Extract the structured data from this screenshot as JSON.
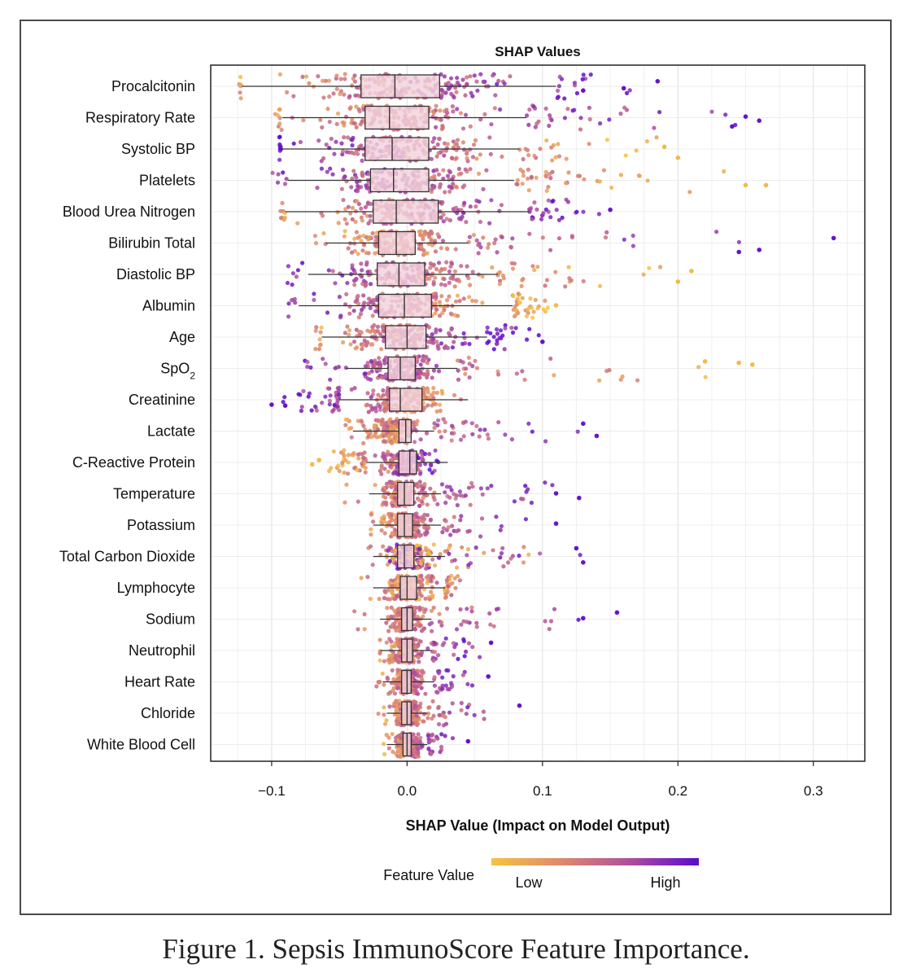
{
  "chart_data": {
    "type": "box-swarm",
    "title": "SHAP Values",
    "xlabel": "SHAP Value (Impact on Model Output)",
    "xlim": [
      -0.145,
      0.338
    ],
    "xticks": [
      {
        "value": -0.1,
        "label": "−0.1"
      },
      {
        "value": 0.0,
        "label": "0.0"
      },
      {
        "value": 0.1,
        "label": "0.1"
      },
      {
        "value": 0.2,
        "label": "0.2"
      },
      {
        "value": 0.3,
        "label": "0.3"
      }
    ],
    "grid": true,
    "legend": {
      "title": "Feature Value",
      "low": "Low",
      "high": "High",
      "colors": [
        "#f5c342",
        "#e08a6b",
        "#b0509c",
        "#5a0bd1"
      ],
      "position": "bottom-center"
    },
    "features": [
      {
        "name": "Procalcitonin",
        "base": "Procalcitonin",
        "q1": -0.034,
        "median": -0.009,
        "q3": 0.024,
        "wmin": -0.122,
        "wmax": 0.11,
        "dmin": -0.125,
        "dmax": 0.185,
        "pattern": "high-right",
        "outliers": [
          0.185,
          0.16,
          0.13
        ]
      },
      {
        "name": "Respiratory Rate",
        "base": "Respiratory Rate",
        "q1": -0.031,
        "median": -0.013,
        "q3": 0.016,
        "wmin": -0.092,
        "wmax": 0.088,
        "dmin": -0.1,
        "dmax": 0.265,
        "pattern": "high-right",
        "outliers": [
          0.26,
          0.25,
          0.24
        ]
      },
      {
        "name": "Systolic BP",
        "base": "Systolic BP",
        "q1": -0.031,
        "median": -0.011,
        "q3": 0.016,
        "wmin": -0.093,
        "wmax": 0.083,
        "dmin": -0.095,
        "dmax": 0.21,
        "pattern": "low-right",
        "outliers": [
          0.2,
          0.19
        ]
      },
      {
        "name": "Platelets",
        "base": "Platelets",
        "q1": -0.027,
        "median": -0.01,
        "q3": 0.016,
        "wmin": -0.088,
        "wmax": 0.079,
        "dmin": -0.105,
        "dmax": 0.265,
        "pattern": "low-right",
        "outliers": [
          0.265,
          0.25
        ]
      },
      {
        "name": "Blood Urea Nitrogen",
        "base": "Blood Urea Nitrogen",
        "q1": -0.025,
        "median": -0.008,
        "q3": 0.023,
        "wmin": -0.09,
        "wmax": 0.09,
        "dmin": -0.095,
        "dmax": 0.155,
        "pattern": "high-right",
        "outliers": [
          0.15
        ]
      },
      {
        "name": "Bilirubin Total",
        "base": "Bilirubin Total",
        "q1": -0.021,
        "median": -0.008,
        "q3": 0.006,
        "wmin": -0.06,
        "wmax": 0.045,
        "dmin": -0.075,
        "dmax": 0.315,
        "pattern": "high-right",
        "outliers": [
          0.315,
          0.26,
          0.245
        ]
      },
      {
        "name": "Diastolic BP",
        "base": "Diastolic BP",
        "q1": -0.022,
        "median": -0.006,
        "q3": 0.013,
        "wmin": -0.073,
        "wmax": 0.067,
        "dmin": -0.095,
        "dmax": 0.21,
        "pattern": "low-right",
        "outliers": [
          0.2,
          0.21
        ]
      },
      {
        "name": "Albumin",
        "base": "Albumin",
        "q1": -0.021,
        "median": -0.002,
        "q3": 0.018,
        "wmin": -0.08,
        "wmax": 0.078,
        "dmin": -0.095,
        "dmax": 0.12,
        "pattern": "low-right",
        "outliers": [
          0.11
        ]
      },
      {
        "name": "Age",
        "base": "Age",
        "q1": -0.016,
        "median": 0.0,
        "q3": 0.014,
        "wmin": -0.063,
        "wmax": 0.059,
        "dmin": -0.07,
        "dmax": 0.1,
        "pattern": "high-right",
        "outliers": [
          0.1
        ]
      },
      {
        "name": "SpO2",
        "base": "SpO",
        "sub": "2",
        "q1": -0.014,
        "median": -0.005,
        "q3": 0.006,
        "wmin": -0.045,
        "wmax": 0.037,
        "dmin": -0.09,
        "dmax": 0.255,
        "pattern": "low-right",
        "outliers": [
          0.255,
          0.245,
          0.22
        ]
      },
      {
        "name": "Creatinine",
        "base": "Creatinine",
        "q1": -0.013,
        "median": -0.005,
        "q3": 0.011,
        "wmin": -0.05,
        "wmax": 0.045,
        "dmin": -0.1,
        "dmax": 0.065,
        "pattern": "high-left",
        "outliers": [
          -0.1,
          -0.09
        ]
      },
      {
        "name": "Lactate",
        "base": "Lactate",
        "q1": -0.006,
        "median": -0.001,
        "q3": 0.003,
        "wmin": -0.04,
        "wmax": 0.02,
        "dmin": -0.05,
        "dmax": 0.14,
        "pattern": "high-right",
        "outliers": [
          0.14,
          0.13
        ]
      },
      {
        "name": "C-Reactive Protein",
        "base": "C-Reactive Protein",
        "q1": -0.006,
        "median": 0.002,
        "q3": 0.007,
        "wmin": -0.03,
        "wmax": 0.03,
        "dmin": -0.07,
        "dmax": 0.035,
        "pattern": "low-left",
        "outliers": [
          -0.07,
          -0.065
        ]
      },
      {
        "name": "Temperature",
        "base": "Temperature",
        "q1": -0.007,
        "median": -0.002,
        "q3": 0.005,
        "wmin": -0.028,
        "wmax": 0.025,
        "dmin": -0.055,
        "dmax": 0.127,
        "pattern": "high-right",
        "outliers": [
          0.127,
          0.11
        ]
      },
      {
        "name": "Potassium",
        "base": "Potassium",
        "q1": -0.007,
        "median": -0.002,
        "q3": 0.004,
        "wmin": -0.025,
        "wmax": 0.025,
        "dmin": -0.03,
        "dmax": 0.11,
        "pattern": "high-right",
        "outliers": [
          0.11
        ]
      },
      {
        "name": "Total Carbon Dioxide",
        "base": "Total Carbon Dioxide",
        "q1": -0.007,
        "median": -0.002,
        "q3": 0.005,
        "wmin": -0.025,
        "wmax": 0.028,
        "dmin": -0.035,
        "dmax": 0.13,
        "pattern": "mixed-right",
        "outliers": [
          0.13,
          0.125
        ]
      },
      {
        "name": "Lymphocyte",
        "base": "Lymphocyte",
        "q1": -0.005,
        "median": 0.0,
        "q3": 0.007,
        "wmin": -0.025,
        "wmax": 0.028,
        "dmin": -0.04,
        "dmax": 0.04,
        "pattern": "mixed",
        "outliers": []
      },
      {
        "name": "Sodium",
        "base": "Sodium",
        "q1": -0.004,
        "median": 0.0,
        "q3": 0.004,
        "wmin": -0.02,
        "wmax": 0.018,
        "dmin": -0.05,
        "dmax": 0.155,
        "pattern": "high-right",
        "outliers": [
          0.155,
          0.13
        ]
      },
      {
        "name": "Neutrophil",
        "base": "Neutrophil",
        "q1": -0.004,
        "median": 0.0,
        "q3": 0.004,
        "wmin": -0.02,
        "wmax": 0.018,
        "dmin": -0.02,
        "dmax": 0.062,
        "pattern": "high-right",
        "outliers": [
          0.062
        ]
      },
      {
        "name": "Heart Rate",
        "base": "Heart Rate",
        "q1": -0.004,
        "median": 0.0,
        "q3": 0.003,
        "wmin": -0.018,
        "wmax": 0.02,
        "dmin": -0.025,
        "dmax": 0.06,
        "pattern": "high-right",
        "outliers": [
          0.06
        ]
      },
      {
        "name": "Chloride",
        "base": "Chloride",
        "q1": -0.004,
        "median": 0.0,
        "q3": 0.003,
        "wmin": -0.015,
        "wmax": 0.015,
        "dmin": -0.025,
        "dmax": 0.083,
        "pattern": "high-right",
        "outliers": [
          0.083
        ]
      },
      {
        "name": "White Blood Cell",
        "base": "White Blood Cell",
        "q1": -0.003,
        "median": 0.0,
        "q3": 0.003,
        "wmin": -0.015,
        "wmax": 0.015,
        "dmin": -0.02,
        "dmax": 0.045,
        "pattern": "high-right",
        "outliers": [
          0.045
        ]
      }
    ]
  },
  "caption": "Figure 1.  Sepsis ImmunoScore Feature Importance."
}
